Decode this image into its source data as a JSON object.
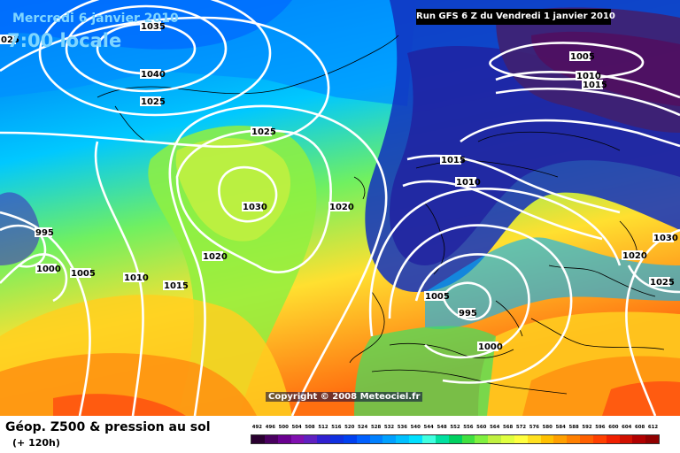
{
  "map": {
    "title_date": "Mercredi 6 janvier 2010",
    "title_time": "7:00 locale",
    "run_info": "Run GFS 6 Z du Vendredi 1 janvier 2010",
    "copyright": "Copyright © 2008 Meteociel.fr",
    "legend_title": "Géop. Z500 & pression au sol",
    "legend_sub": "(+ 120h)",
    "isobar_labels": [
      "1035",
      "1040",
      "1025",
      "1025",
      "1030",
      "1020",
      "1020",
      "1015",
      "1010",
      "1005",
      "1000",
      "995",
      "1005",
      "995",
      "1000",
      "1005",
      "1010",
      "1015",
      "1015",
      "1010",
      "1020",
      "1025",
      "1030",
      "025"
    ],
    "scale_values": [
      492,
      496,
      500,
      504,
      508,
      512,
      516,
      520,
      524,
      528,
      532,
      536,
      540,
      544,
      548,
      552,
      556,
      560,
      564,
      568,
      572,
      576,
      580,
      584,
      588,
      592,
      596,
      600,
      604,
      608,
      612
    ],
    "scale_colors": [
      "#2a0030",
      "#4a0060",
      "#6a0090",
      "#8010b0",
      "#6020c0",
      "#3020d0",
      "#1030e0",
      "#0040f0",
      "#0060ff",
      "#0080ff",
      "#00a0ff",
      "#00c0ff",
      "#00e0ff",
      "#40ffe0",
      "#00e0a0",
      "#00d060",
      "#40e040",
      "#80f040",
      "#c0f040",
      "#e0ff40",
      "#ffff40",
      "#ffe020",
      "#ffc000",
      "#ffa000",
      "#ff8000",
      "#ff6000",
      "#ff4000",
      "#f02000",
      "#d01000",
      "#b00000",
      "#900000"
    ]
  }
}
